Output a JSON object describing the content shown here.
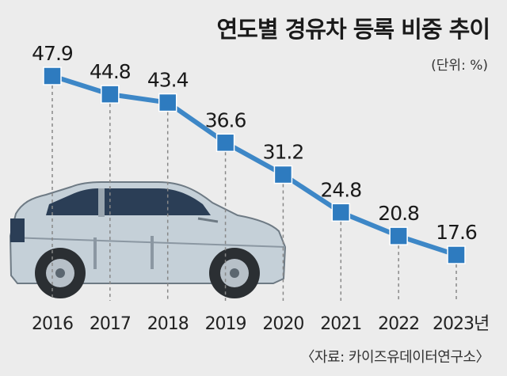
{
  "chart_data": {
    "type": "line",
    "title": "연도별 경유차 등록 비중 추이",
    "unit": "(단위: %)",
    "source": "〈자료: 카이즈유데이터연구소〉",
    "categories": [
      "2016",
      "2017",
      "2018",
      "2019",
      "2020",
      "2021",
      "2022",
      "2023년"
    ],
    "values": [
      47.9,
      44.8,
      43.4,
      36.6,
      31.2,
      24.8,
      20.8,
      17.6
    ],
    "value_labels": [
      "47.9",
      "44.8",
      "43.4",
      "36.6",
      "31.2",
      "24.8",
      "20.8",
      "17.6"
    ],
    "ylim": [
      0,
      60
    ],
    "grid": false,
    "colors": {
      "line": "#3d87c7",
      "marker": "#2e7bbf",
      "guide": "#888888"
    }
  }
}
